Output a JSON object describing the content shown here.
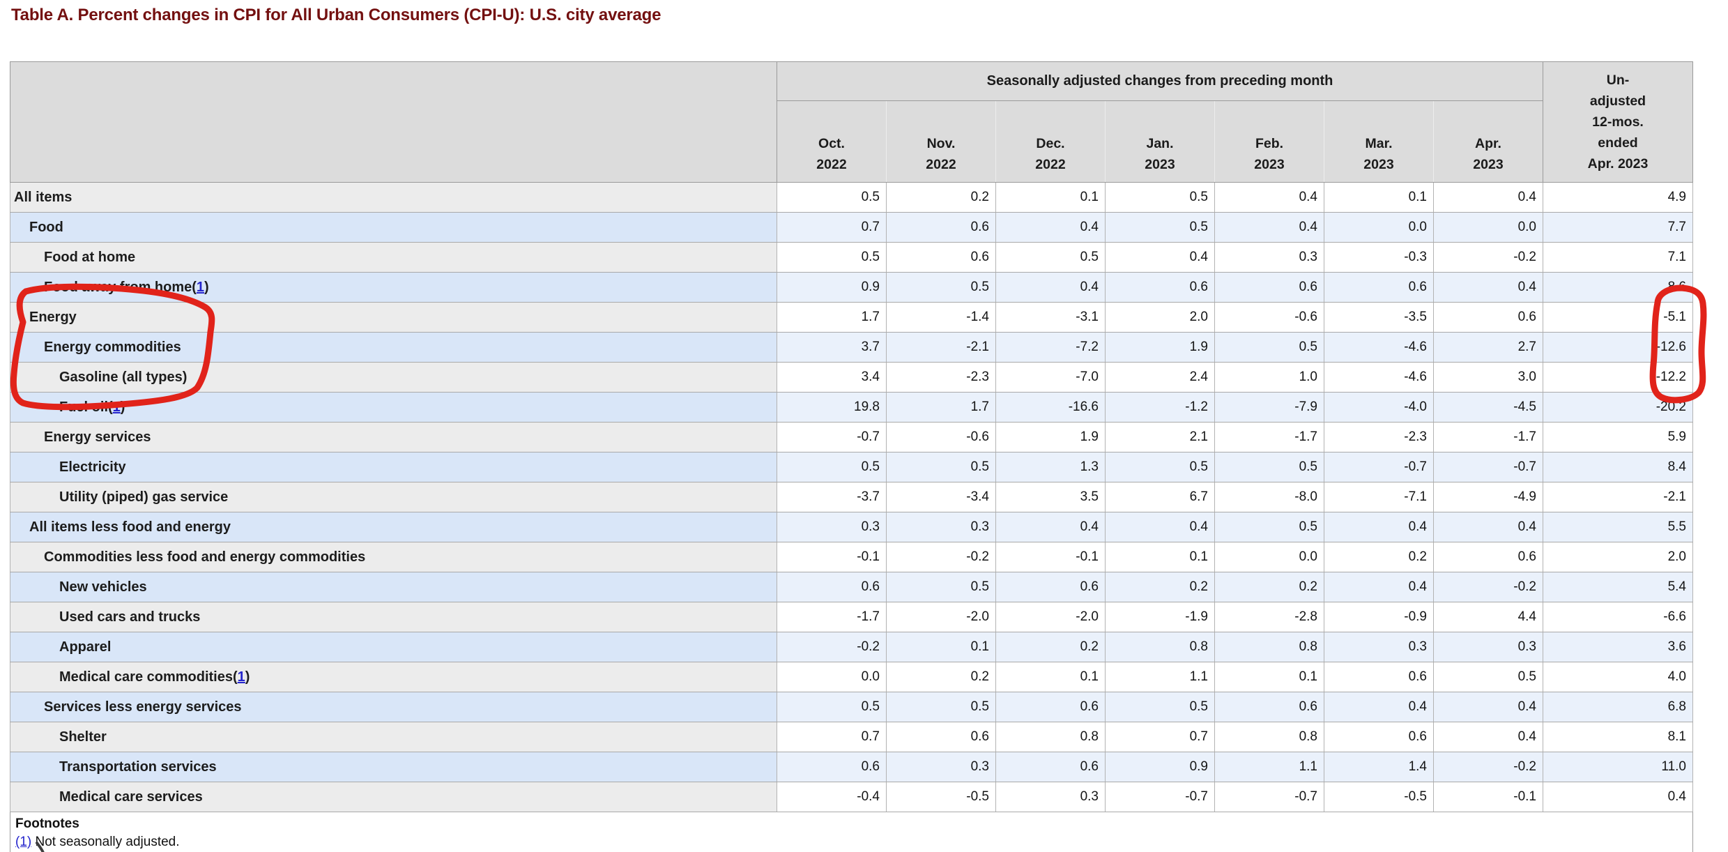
{
  "page": {
    "title": "Table A. Percent changes in CPI for All Urban Consumers (CPI-U): U.S. city average"
  },
  "table": {
    "header": {
      "group_label": "Seasonally adjusted changes from preceding month",
      "unadjusted_label": "Un-\nadjusted\n12-mos.\nended\nApr. 2023",
      "months": [
        "Oct.\n2022",
        "Nov.\n2022",
        "Dec.\n2022",
        "Jan.\n2023",
        "Feb.\n2023",
        "Mar.\n2023",
        "Apr.\n2023"
      ]
    },
    "rows": [
      {
        "label": "All items",
        "indent": 0,
        "footnote": null,
        "values": [
          "0.5",
          "0.2",
          "0.1",
          "0.5",
          "0.4",
          "0.1",
          "0.4",
          "4.9"
        ]
      },
      {
        "label": "Food",
        "indent": 1,
        "footnote": null,
        "values": [
          "0.7",
          "0.6",
          "0.4",
          "0.5",
          "0.4",
          "0.0",
          "0.0",
          "7.7"
        ]
      },
      {
        "label": "Food at home",
        "indent": 2,
        "footnote": null,
        "values": [
          "0.5",
          "0.6",
          "0.5",
          "0.4",
          "0.3",
          "-0.3",
          "-0.2",
          "7.1"
        ]
      },
      {
        "label": "Food away from home",
        "indent": 2,
        "footnote": "1",
        "values": [
          "0.9",
          "0.5",
          "0.4",
          "0.6",
          "0.6",
          "0.6",
          "0.4",
          "8.6"
        ]
      },
      {
        "label": "Energy",
        "indent": 1,
        "footnote": null,
        "values": [
          "1.7",
          "-1.4",
          "-3.1",
          "2.0",
          "-0.6",
          "-3.5",
          "0.6",
          "-5.1"
        ]
      },
      {
        "label": "Energy commodities",
        "indent": 2,
        "footnote": null,
        "values": [
          "3.7",
          "-2.1",
          "-7.2",
          "1.9",
          "0.5",
          "-4.6",
          "2.7",
          "-12.6"
        ]
      },
      {
        "label": "Gasoline (all types)",
        "indent": 3,
        "footnote": null,
        "values": [
          "3.4",
          "-2.3",
          "-7.0",
          "2.4",
          "1.0",
          "-4.6",
          "3.0",
          "-12.2"
        ]
      },
      {
        "label": "Fuel oil",
        "indent": 3,
        "footnote": "1",
        "values": [
          "19.8",
          "1.7",
          "-16.6",
          "-1.2",
          "-7.9",
          "-4.0",
          "-4.5",
          "-20.2"
        ]
      },
      {
        "label": "Energy services",
        "indent": 2,
        "footnote": null,
        "values": [
          "-0.7",
          "-0.6",
          "1.9",
          "2.1",
          "-1.7",
          "-2.3",
          "-1.7",
          "5.9"
        ]
      },
      {
        "label": "Electricity",
        "indent": 3,
        "footnote": null,
        "values": [
          "0.5",
          "0.5",
          "1.3",
          "0.5",
          "0.5",
          "-0.7",
          "-0.7",
          "8.4"
        ]
      },
      {
        "label": "Utility (piped) gas service",
        "indent": 3,
        "footnote": null,
        "values": [
          "-3.7",
          "-3.4",
          "3.5",
          "6.7",
          "-8.0",
          "-7.1",
          "-4.9",
          "-2.1"
        ]
      },
      {
        "label": "All items less food and energy",
        "indent": 1,
        "footnote": null,
        "values": [
          "0.3",
          "0.3",
          "0.4",
          "0.4",
          "0.5",
          "0.4",
          "0.4",
          "5.5"
        ]
      },
      {
        "label": "Commodities less food and energy commodities",
        "indent": 2,
        "footnote": null,
        "values": [
          "-0.1",
          "-0.2",
          "-0.1",
          "0.1",
          "0.0",
          "0.2",
          "0.6",
          "2.0"
        ]
      },
      {
        "label": "New vehicles",
        "indent": 3,
        "footnote": null,
        "values": [
          "0.6",
          "0.5",
          "0.6",
          "0.2",
          "0.2",
          "0.4",
          "-0.2",
          "5.4"
        ]
      },
      {
        "label": "Used cars and trucks",
        "indent": 3,
        "footnote": null,
        "values": [
          "-1.7",
          "-2.0",
          "-2.0",
          "-1.9",
          "-2.8",
          "-0.9",
          "4.4",
          "-6.6"
        ]
      },
      {
        "label": "Apparel",
        "indent": 3,
        "footnote": null,
        "values": [
          "-0.2",
          "0.1",
          "0.2",
          "0.8",
          "0.8",
          "0.3",
          "0.3",
          "3.6"
        ]
      },
      {
        "label": "Medical care commodities",
        "indent": 3,
        "footnote": "1",
        "values": [
          "0.0",
          "0.2",
          "0.1",
          "1.1",
          "0.1",
          "0.6",
          "0.5",
          "4.0"
        ]
      },
      {
        "label": "Services less energy services",
        "indent": 2,
        "footnote": null,
        "values": [
          "0.5",
          "0.5",
          "0.6",
          "0.5",
          "0.6",
          "0.4",
          "0.4",
          "6.8"
        ]
      },
      {
        "label": "Shelter",
        "indent": 3,
        "footnote": null,
        "values": [
          "0.7",
          "0.6",
          "0.8",
          "0.7",
          "0.8",
          "0.6",
          "0.4",
          "8.1"
        ]
      },
      {
        "label": "Transportation services",
        "indent": 3,
        "footnote": null,
        "values": [
          "0.6",
          "0.3",
          "0.6",
          "0.9",
          "1.1",
          "1.4",
          "-0.2",
          "11.0"
        ]
      },
      {
        "label": "Medical care services",
        "indent": 3,
        "footnote": null,
        "values": [
          "-0.4",
          "-0.5",
          "0.3",
          "-0.7",
          "-0.7",
          "-0.5",
          "-0.1",
          "0.4"
        ]
      }
    ],
    "footnotes": {
      "heading": "Footnotes",
      "items": [
        {
          "ref": "(1)",
          "text": " Not seasonally adjusted."
        }
      ]
    }
  },
  "annotations": {
    "pen_color": "#e1231a",
    "stray_mark_color": "#3e3e3e",
    "left_circle_target": "rows Energy, Energy commodities, Gasoline (all types), Fuel oil",
    "right_circle_target": "unadjusted 12-month values -5.1, -12.6, -12.2, -20.2"
  },
  "colors": {
    "title": "#731010",
    "header_bg": "#dcdcdc",
    "row_gray_label_bg": "#ececec",
    "row_white_value_bg": "#ffffff",
    "row_blue_label_bg": "#d9e6f8",
    "row_blue_value_bg": "#eaf1fb",
    "link": "#2424cc",
    "border": "#9a9a9a"
  }
}
